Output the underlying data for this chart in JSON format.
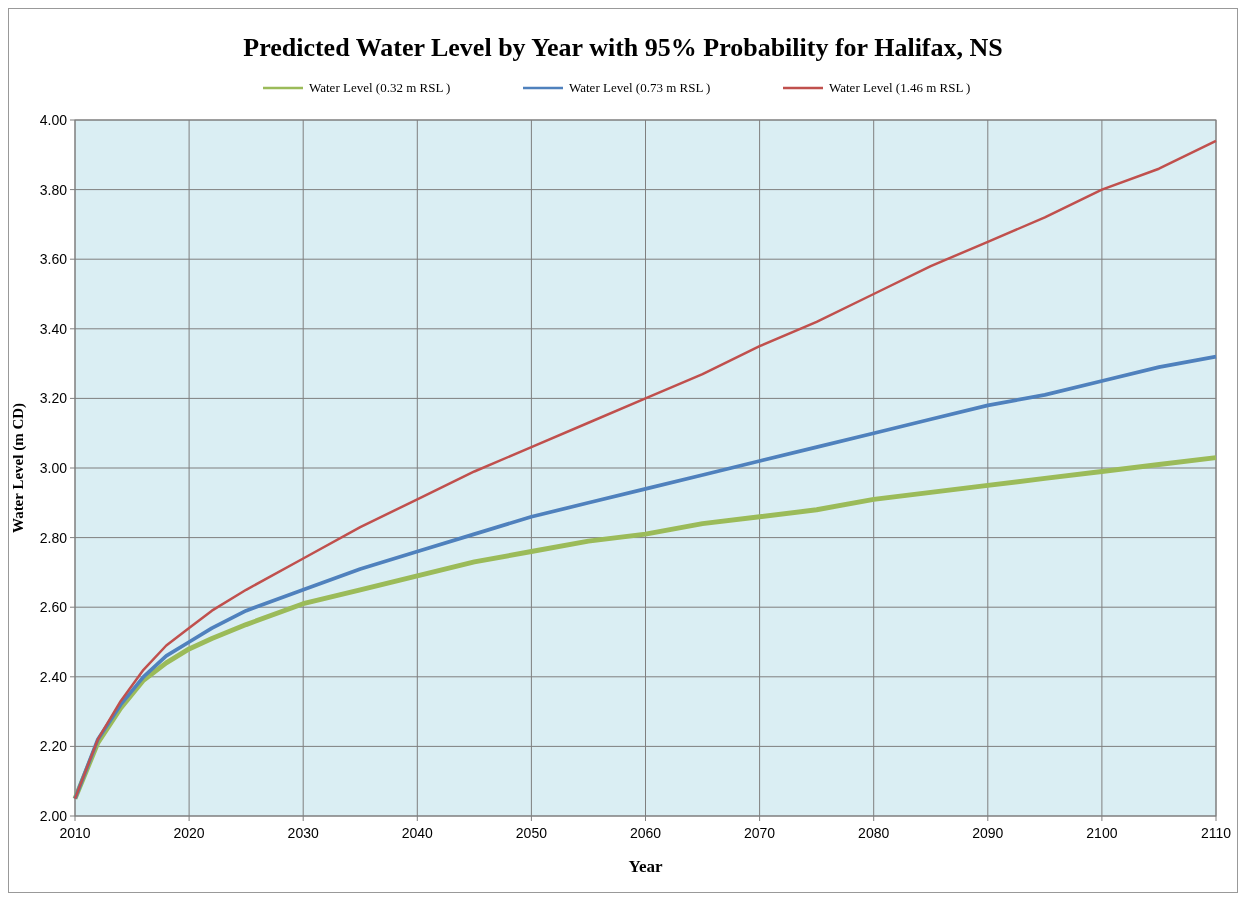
{
  "chart_data": {
    "type": "line",
    "title": "Predicted Water Level by Year with 95% Probability for Halifax, NS",
    "xlabel": "Year",
    "ylabel": "Water Level (m CD)",
    "x": [
      2010,
      2012,
      2014,
      2016,
      2018,
      2020,
      2022,
      2025,
      2030,
      2035,
      2040,
      2045,
      2050,
      2055,
      2060,
      2065,
      2070,
      2075,
      2080,
      2085,
      2090,
      2095,
      2100,
      2105,
      2110
    ],
    "series": [
      {
        "name": "Water Level (0.32 m RSL )",
        "color": "#9bbb59",
        "values": [
          2.05,
          2.21,
          2.31,
          2.39,
          2.44,
          2.48,
          2.51,
          2.55,
          2.61,
          2.65,
          2.69,
          2.73,
          2.76,
          2.79,
          2.81,
          2.84,
          2.86,
          2.88,
          2.91,
          2.93,
          2.95,
          2.97,
          2.99,
          3.01,
          3.03
        ]
      },
      {
        "name": "Water Level (0.73 m RSL )",
        "color": "#4f81bd",
        "values": [
          2.05,
          2.22,
          2.32,
          2.4,
          2.46,
          2.5,
          2.54,
          2.59,
          2.65,
          2.71,
          2.76,
          2.81,
          2.86,
          2.9,
          2.94,
          2.98,
          3.02,
          3.06,
          3.1,
          3.14,
          3.18,
          3.21,
          3.25,
          3.29,
          3.32
        ]
      },
      {
        "name": "Water Level (1.46 m RSL )",
        "color": "#c0504d",
        "values": [
          2.05,
          2.22,
          2.33,
          2.42,
          2.49,
          2.54,
          2.59,
          2.65,
          2.74,
          2.83,
          2.91,
          2.99,
          3.06,
          3.13,
          3.2,
          3.27,
          3.35,
          3.42,
          3.5,
          3.58,
          3.65,
          3.72,
          3.8,
          3.86,
          3.94
        ]
      }
    ],
    "xlim": [
      2010,
      2110
    ],
    "xticks": [
      2010,
      2020,
      2030,
      2040,
      2050,
      2060,
      2070,
      2080,
      2090,
      2100,
      2110
    ],
    "ylim": [
      2,
      4
    ],
    "yticks": [
      {
        "value": 2,
        "label": "2.00"
      },
      {
        "value": 2.2,
        "label": "2.20"
      },
      {
        "value": 2.4,
        "label": "2.40"
      },
      {
        "value": 2.6,
        "label": "2.60"
      },
      {
        "value": 2.8,
        "label": "2.80"
      },
      {
        "value": 3,
        "label": "3.00"
      },
      {
        "value": 3.2,
        "label": "3.20"
      },
      {
        "value": 3.4,
        "label": "3.40"
      },
      {
        "value": 3.6,
        "label": "3.60"
      },
      {
        "value": 3.8,
        "label": "3.80"
      },
      {
        "value": 4,
        "label": "4.00"
      }
    ],
    "grid": true,
    "legend": "top",
    "marker": "none",
    "line_style": "solid"
  }
}
